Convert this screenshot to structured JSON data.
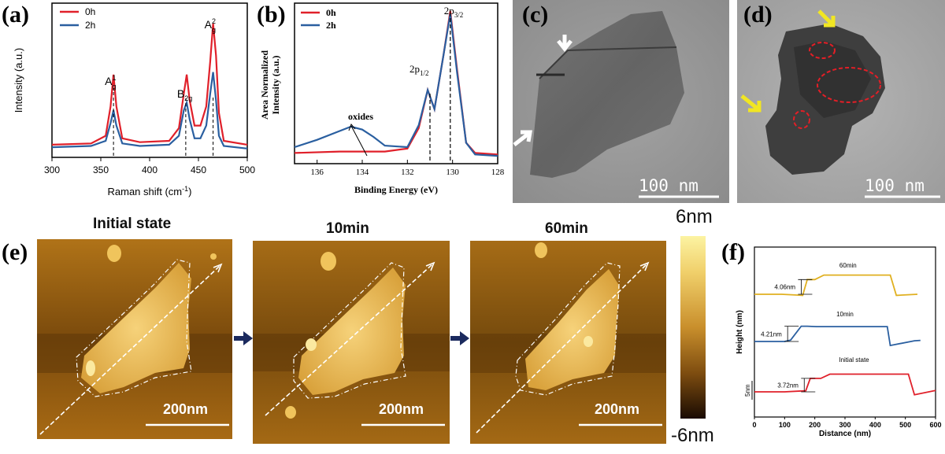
{
  "panels": {
    "a": "(a)",
    "b": "(b)",
    "c": "(c)",
    "d": "(d)",
    "e": "(e)",
    "f": "(f)"
  },
  "chart_data": [
    {
      "id": "a",
      "type": "line",
      "xlabel_pre": "Raman shift (cm",
      "xlabel_sup": "-1",
      "xlabel_post": ")",
      "ylabel": "Intensity (a.u.)",
      "xlim": [
        300,
        500
      ],
      "xticks": [
        "300",
        "350",
        "400",
        "450",
        "500"
      ],
      "legend": [
        "0h",
        "2h"
      ],
      "peaks": [
        {
          "x": 363,
          "main": "A",
          "sub": "g",
          "sup": "1"
        },
        {
          "x": 437,
          "main": "B",
          "sub": "2g",
          "sup": ""
        },
        {
          "x": 465,
          "main": "A",
          "sub": "g",
          "sup": "2"
        }
      ],
      "series": [
        {
          "name": "0h",
          "color": "#e0202a",
          "points": [
            [
              300,
              0.05
            ],
            [
              340,
              0.06
            ],
            [
              355,
              0.12
            ],
            [
              360,
              0.35
            ],
            [
              363,
              0.6
            ],
            [
              366,
              0.35
            ],
            [
              372,
              0.1
            ],
            [
              390,
              0.07
            ],
            [
              420,
              0.08
            ],
            [
              430,
              0.18
            ],
            [
              435,
              0.45
            ],
            [
              438,
              0.6
            ],
            [
              441,
              0.4
            ],
            [
              446,
              0.2
            ],
            [
              452,
              0.2
            ],
            [
              458,
              0.35
            ],
            [
              462,
              0.7
            ],
            [
              465,
              1.0
            ],
            [
              468,
              0.75
            ],
            [
              471,
              0.3
            ],
            [
              476,
              0.08
            ],
            [
              500,
              0.05
            ]
          ]
        },
        {
          "name": "2h",
          "color": "#2a5fa0",
          "points": [
            [
              300,
              0.03
            ],
            [
              340,
              0.04
            ],
            [
              355,
              0.08
            ],
            [
              360,
              0.22
            ],
            [
              363,
              0.32
            ],
            [
              366,
              0.2
            ],
            [
              372,
              0.06
            ],
            [
              390,
              0.04
            ],
            [
              420,
              0.05
            ],
            [
              430,
              0.12
            ],
            [
              435,
              0.32
            ],
            [
              438,
              0.38
            ],
            [
              441,
              0.25
            ],
            [
              446,
              0.1
            ],
            [
              452,
              0.1
            ],
            [
              458,
              0.2
            ],
            [
              462,
              0.45
            ],
            [
              465,
              0.62
            ],
            [
              468,
              0.4
            ],
            [
              471,
              0.12
            ],
            [
              476,
              0.04
            ],
            [
              500,
              0.02
            ]
          ]
        }
      ]
    },
    {
      "id": "b",
      "type": "line",
      "xlabel": "Binding Energy (eV)",
      "ylabel": [
        "Area Normalized",
        "Intensity (a.u.)"
      ],
      "xlim": [
        137,
        128
      ],
      "xticks": [
        "136",
        "134",
        "132",
        "130",
        "128"
      ],
      "legend": [
        "0h",
        "2h"
      ],
      "annotations": [
        {
          "x": 131.0,
          "main": "2p",
          "sub": "1/2"
        },
        {
          "x": 130.1,
          "main": "2p",
          "sub": "3/2"
        },
        {
          "x": 134.0,
          "text": "oxides"
        }
      ],
      "series": [
        {
          "name": "0h",
          "color": "#e0202a",
          "points": [
            [
              137,
              0.03
            ],
            [
              135,
              0.04
            ],
            [
              133,
              0.04
            ],
            [
              132,
              0.06
            ],
            [
              131.5,
              0.2
            ],
            [
              131.1,
              0.46
            ],
            [
              130.8,
              0.33
            ],
            [
              130.4,
              0.7
            ],
            [
              130.1,
              1.0
            ],
            [
              129.8,
              0.6
            ],
            [
              129.4,
              0.1
            ],
            [
              129,
              0.03
            ],
            [
              128,
              0.02
            ]
          ]
        },
        {
          "name": "2h",
          "color": "#2a5fa0",
          "points": [
            [
              137,
              0.07
            ],
            [
              136,
              0.12
            ],
            [
              135,
              0.18
            ],
            [
              134.5,
              0.21
            ],
            [
              134,
              0.19
            ],
            [
              133.5,
              0.14
            ],
            [
              133,
              0.08
            ],
            [
              132,
              0.07
            ],
            [
              131.5,
              0.22
            ],
            [
              131.1,
              0.46
            ],
            [
              130.8,
              0.33
            ],
            [
              130.4,
              0.7
            ],
            [
              130.1,
              0.98
            ],
            [
              129.8,
              0.58
            ],
            [
              129.4,
              0.1
            ],
            [
              129,
              0.02
            ],
            [
              128,
              0.01
            ]
          ]
        }
      ]
    },
    {
      "id": "f",
      "type": "line",
      "xlabel": "Distance (nm)",
      "ylabel": "Height (nm)",
      "xlim": [
        0,
        600
      ],
      "xticks": [
        "0",
        "100",
        "200",
        "300",
        "400",
        "500",
        "600"
      ],
      "scale_label": "5nm",
      "profiles": [
        {
          "name": "60min",
          "step": "4.06nm",
          "color": "#e0b020",
          "points": [
            [
              0,
              0
            ],
            [
              90,
              0
            ],
            [
              160,
              -0.3
            ],
            [
              175,
              4.06
            ],
            [
              200,
              4.06
            ],
            [
              230,
              5.3
            ],
            [
              450,
              5.3
            ],
            [
              470,
              -0.3
            ],
            [
              540,
              0
            ]
          ]
        },
        {
          "name": "10min",
          "step": "4.21nm",
          "color": "#2a5fa0",
          "points": [
            [
              0,
              0
            ],
            [
              100,
              0
            ],
            [
              120,
              0.4
            ],
            [
              155,
              4.21
            ],
            [
              175,
              4.21
            ],
            [
              205,
              4.1
            ],
            [
              440,
              4.1
            ],
            [
              450,
              -1.1
            ],
            [
              530,
              0.2
            ],
            [
              550,
              0.3
            ]
          ]
        },
        {
          "name": "Initial state",
          "step": "3.72nm",
          "color": "#e0202a",
          "points": [
            [
              0,
              0
            ],
            [
              100,
              0
            ],
            [
              170,
              0.3
            ],
            [
              185,
              3.72
            ],
            [
              220,
              3.72
            ],
            [
              250,
              4.9
            ],
            [
              510,
              4.9
            ],
            [
              530,
              -0.8
            ],
            [
              600,
              0.4
            ]
          ]
        }
      ]
    }
  ],
  "tem": {
    "c_scale": "100 nm",
    "d_scale": "100 nm"
  },
  "afm": {
    "titles": [
      "Initial state",
      "10min",
      "60min"
    ],
    "scale": "200nm",
    "colorbar_max": "6nm",
    "colorbar_min": "-6nm"
  }
}
